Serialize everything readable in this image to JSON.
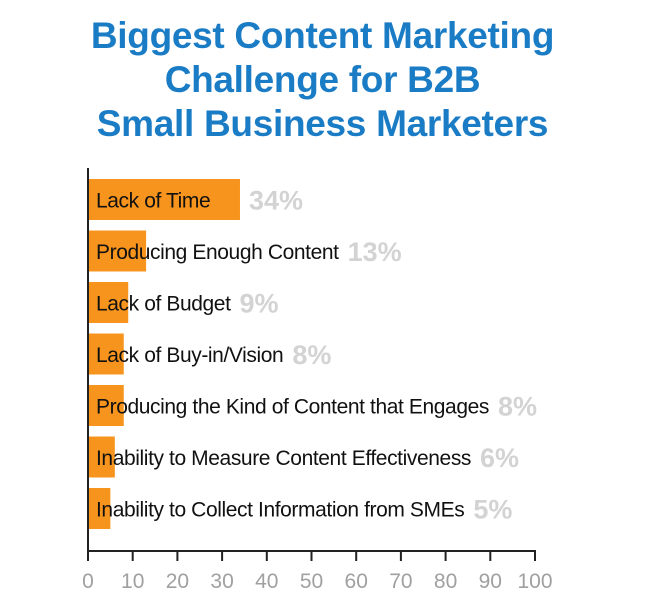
{
  "chart_data": {
    "type": "bar",
    "orientation": "horizontal",
    "title_lines": [
      "Biggest Content Marketing",
      "Challenge for B2B",
      "Small Business Marketers"
    ],
    "categories": [
      "Lack of Time",
      "Producing Enough Content",
      "Lack of Budget",
      "Lack of Buy-in/Vision",
      "Producing the Kind of Content that Engages",
      "Inability to Measure Content Effectiveness",
      "Inability to Collect Information from SMEs"
    ],
    "values": [
      34,
      13,
      9,
      8,
      8,
      6,
      5
    ],
    "value_labels": [
      "34%",
      "13%",
      "9%",
      "8%",
      "8%",
      "6%",
      "5%"
    ],
    "xlim": [
      0,
      100
    ],
    "xticks": [
      "0",
      "10",
      "20",
      "30",
      "40",
      "50",
      "60",
      "70",
      "80",
      "90",
      "100"
    ],
    "xlabel": "",
    "ylabel": "",
    "grid": false,
    "colors": {
      "bar": "#f7941d",
      "title": "#1b7cc6",
      "value_label": "#d3d3d3",
      "tick_label": "#a0a0a0",
      "axis": "#222222"
    }
  }
}
